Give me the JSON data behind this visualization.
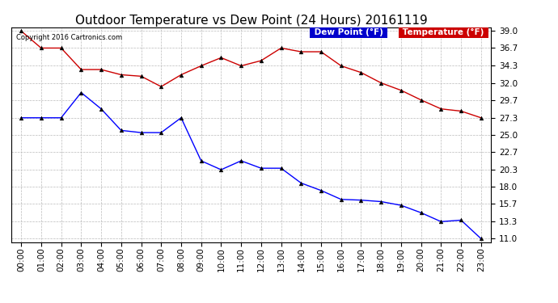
{
  "title": "Outdoor Temperature vs Dew Point (24 Hours) 20161119",
  "copyright_text": "Copyright 2016 Cartronics.com",
  "legend_items": [
    {
      "label": "Dew Point (°F)",
      "color": "#0000cc",
      "bg": "#0000cc",
      "text_color": "white"
    },
    {
      "label": "Temperature (°F)",
      "color": "#cc0000",
      "bg": "#cc0000",
      "text_color": "white"
    }
  ],
  "hours": [
    "00:00",
    "01:00",
    "02:00",
    "03:00",
    "04:00",
    "05:00",
    "06:00",
    "07:00",
    "08:00",
    "09:00",
    "10:00",
    "11:00",
    "12:00",
    "13:00",
    "14:00",
    "15:00",
    "16:00",
    "17:00",
    "18:00",
    "19:00",
    "20:00",
    "21:00",
    "22:00",
    "23:00"
  ],
  "temperature": [
    39.0,
    36.7,
    36.7,
    33.8,
    33.8,
    33.1,
    32.9,
    31.5,
    33.1,
    34.3,
    35.4,
    34.3,
    35.0,
    36.7,
    36.2,
    36.2,
    34.3,
    33.4,
    32.0,
    31.0,
    29.7,
    28.5,
    28.2,
    27.3
  ],
  "dew_point": [
    27.3,
    27.3,
    27.3,
    30.7,
    28.5,
    25.6,
    25.3,
    25.3,
    27.3,
    21.5,
    20.3,
    21.5,
    20.5,
    20.5,
    18.5,
    17.5,
    16.3,
    16.2,
    16.0,
    15.5,
    14.5,
    13.3,
    13.5,
    11.0
  ],
  "ylim_min": 11.0,
  "ylim_max": 39.0,
  "yticks": [
    11.0,
    13.3,
    15.7,
    18.0,
    20.3,
    22.7,
    25.0,
    27.3,
    29.7,
    32.0,
    34.3,
    36.7,
    39.0
  ],
  "temp_color": "#cc0000",
  "dew_color": "#0000ff",
  "grid_color": "#bbbbbb",
  "bg_color": "#ffffff",
  "title_fontsize": 11,
  "axis_fontsize": 7.5,
  "marker": "^",
  "markersize": 3.5,
  "dew_legend_bg": "#0000cc",
  "temp_legend_bg": "#cc0000"
}
